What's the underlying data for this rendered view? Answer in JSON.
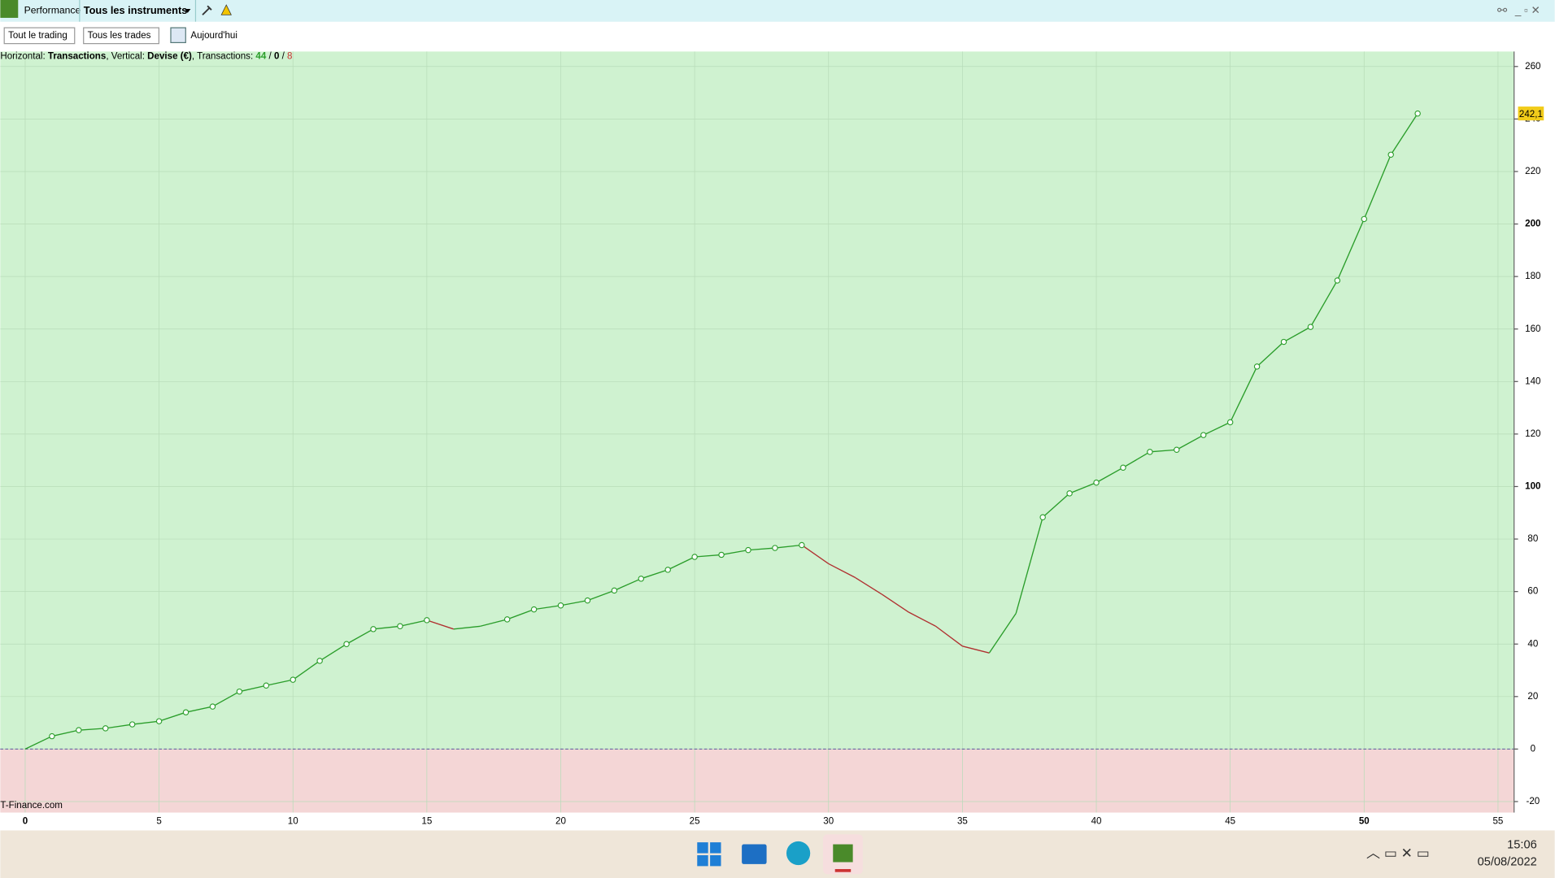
{
  "toolbar": {
    "tabs": [
      "Performance",
      "Tous les instruments"
    ],
    "filters": [
      "Tout le trading",
      "Tous les trades"
    ],
    "date_button": "Aujourd'hui"
  },
  "chart_data": {
    "type": "line",
    "info": [
      "Horizontal: ",
      "Transactions",
      ", Vertical: ",
      "Devise (€)",
      ", Transactions: ",
      "44",
      " / ",
      "0",
      " / ",
      "8"
    ],
    "x": [
      0,
      1,
      2,
      3,
      4,
      5,
      6,
      7,
      8,
      9,
      10,
      11,
      12,
      13,
      14,
      15,
      16,
      17,
      18,
      19,
      20,
      21,
      22,
      23,
      24,
      25,
      26,
      27,
      28,
      29,
      30,
      31,
      32,
      33,
      34,
      35,
      36,
      37,
      38,
      39,
      40,
      41,
      42,
      43,
      44,
      45,
      46,
      47,
      48,
      49,
      50,
      51,
      52
    ],
    "values": [
      0,
      4.9,
      7.2,
      7.9,
      9.4,
      10.6,
      14.0,
      16.2,
      21.9,
      24.2,
      26.4,
      33.6,
      40.0,
      45.7,
      46.8,
      49.1,
      45.7,
      46.8,
      49.4,
      53.2,
      54.7,
      56.6,
      60.4,
      64.9,
      68.3,
      73.2,
      74.0,
      75.8,
      76.6,
      77.7,
      70.6,
      65.3,
      58.9,
      52.1,
      46.8,
      39.2,
      36.6,
      51.7,
      88.3,
      97.4,
      101.5,
      107.2,
      113.2,
      114.0,
      119.6,
      124.5,
      145.7,
      155.1,
      160.8,
      178.5,
      201.9,
      226.4,
      242.1
    ],
    "value_labels": [
      null,
      null,
      null,
      null,
      null,
      null,
      null,
      null,
      null,
      null,
      null,
      null,
      null,
      null,
      null,
      null,
      null,
      null,
      null,
      null,
      null,
      null,
      null,
      null,
      null,
      null,
      null,
      null,
      null,
      null,
      null,
      null,
      null,
      null,
      null,
      null,
      null,
      null,
      null,
      null,
      null,
      null,
      null,
      null,
      null,
      null,
      null,
      null,
      null,
      null,
      null,
      null,
      "242,1"
    ],
    "color": "#2a9d2a",
    "down_color": "#b03030",
    "xlim": [
      -0.93,
      55.6
    ],
    "ylim": [
      -24.2,
      265.7
    ],
    "xticks": [
      0,
      5,
      10,
      15,
      20,
      25,
      30,
      35,
      40,
      45,
      50,
      55
    ],
    "yticks": [
      -20,
      0,
      20,
      40,
      60,
      80,
      100,
      120,
      140,
      160,
      180,
      200,
      220,
      240,
      260
    ],
    "grid": true,
    "watermark": "T-Finance.com"
  },
  "taskbar": {
    "time": "15:06",
    "date": "05/08/2022"
  }
}
